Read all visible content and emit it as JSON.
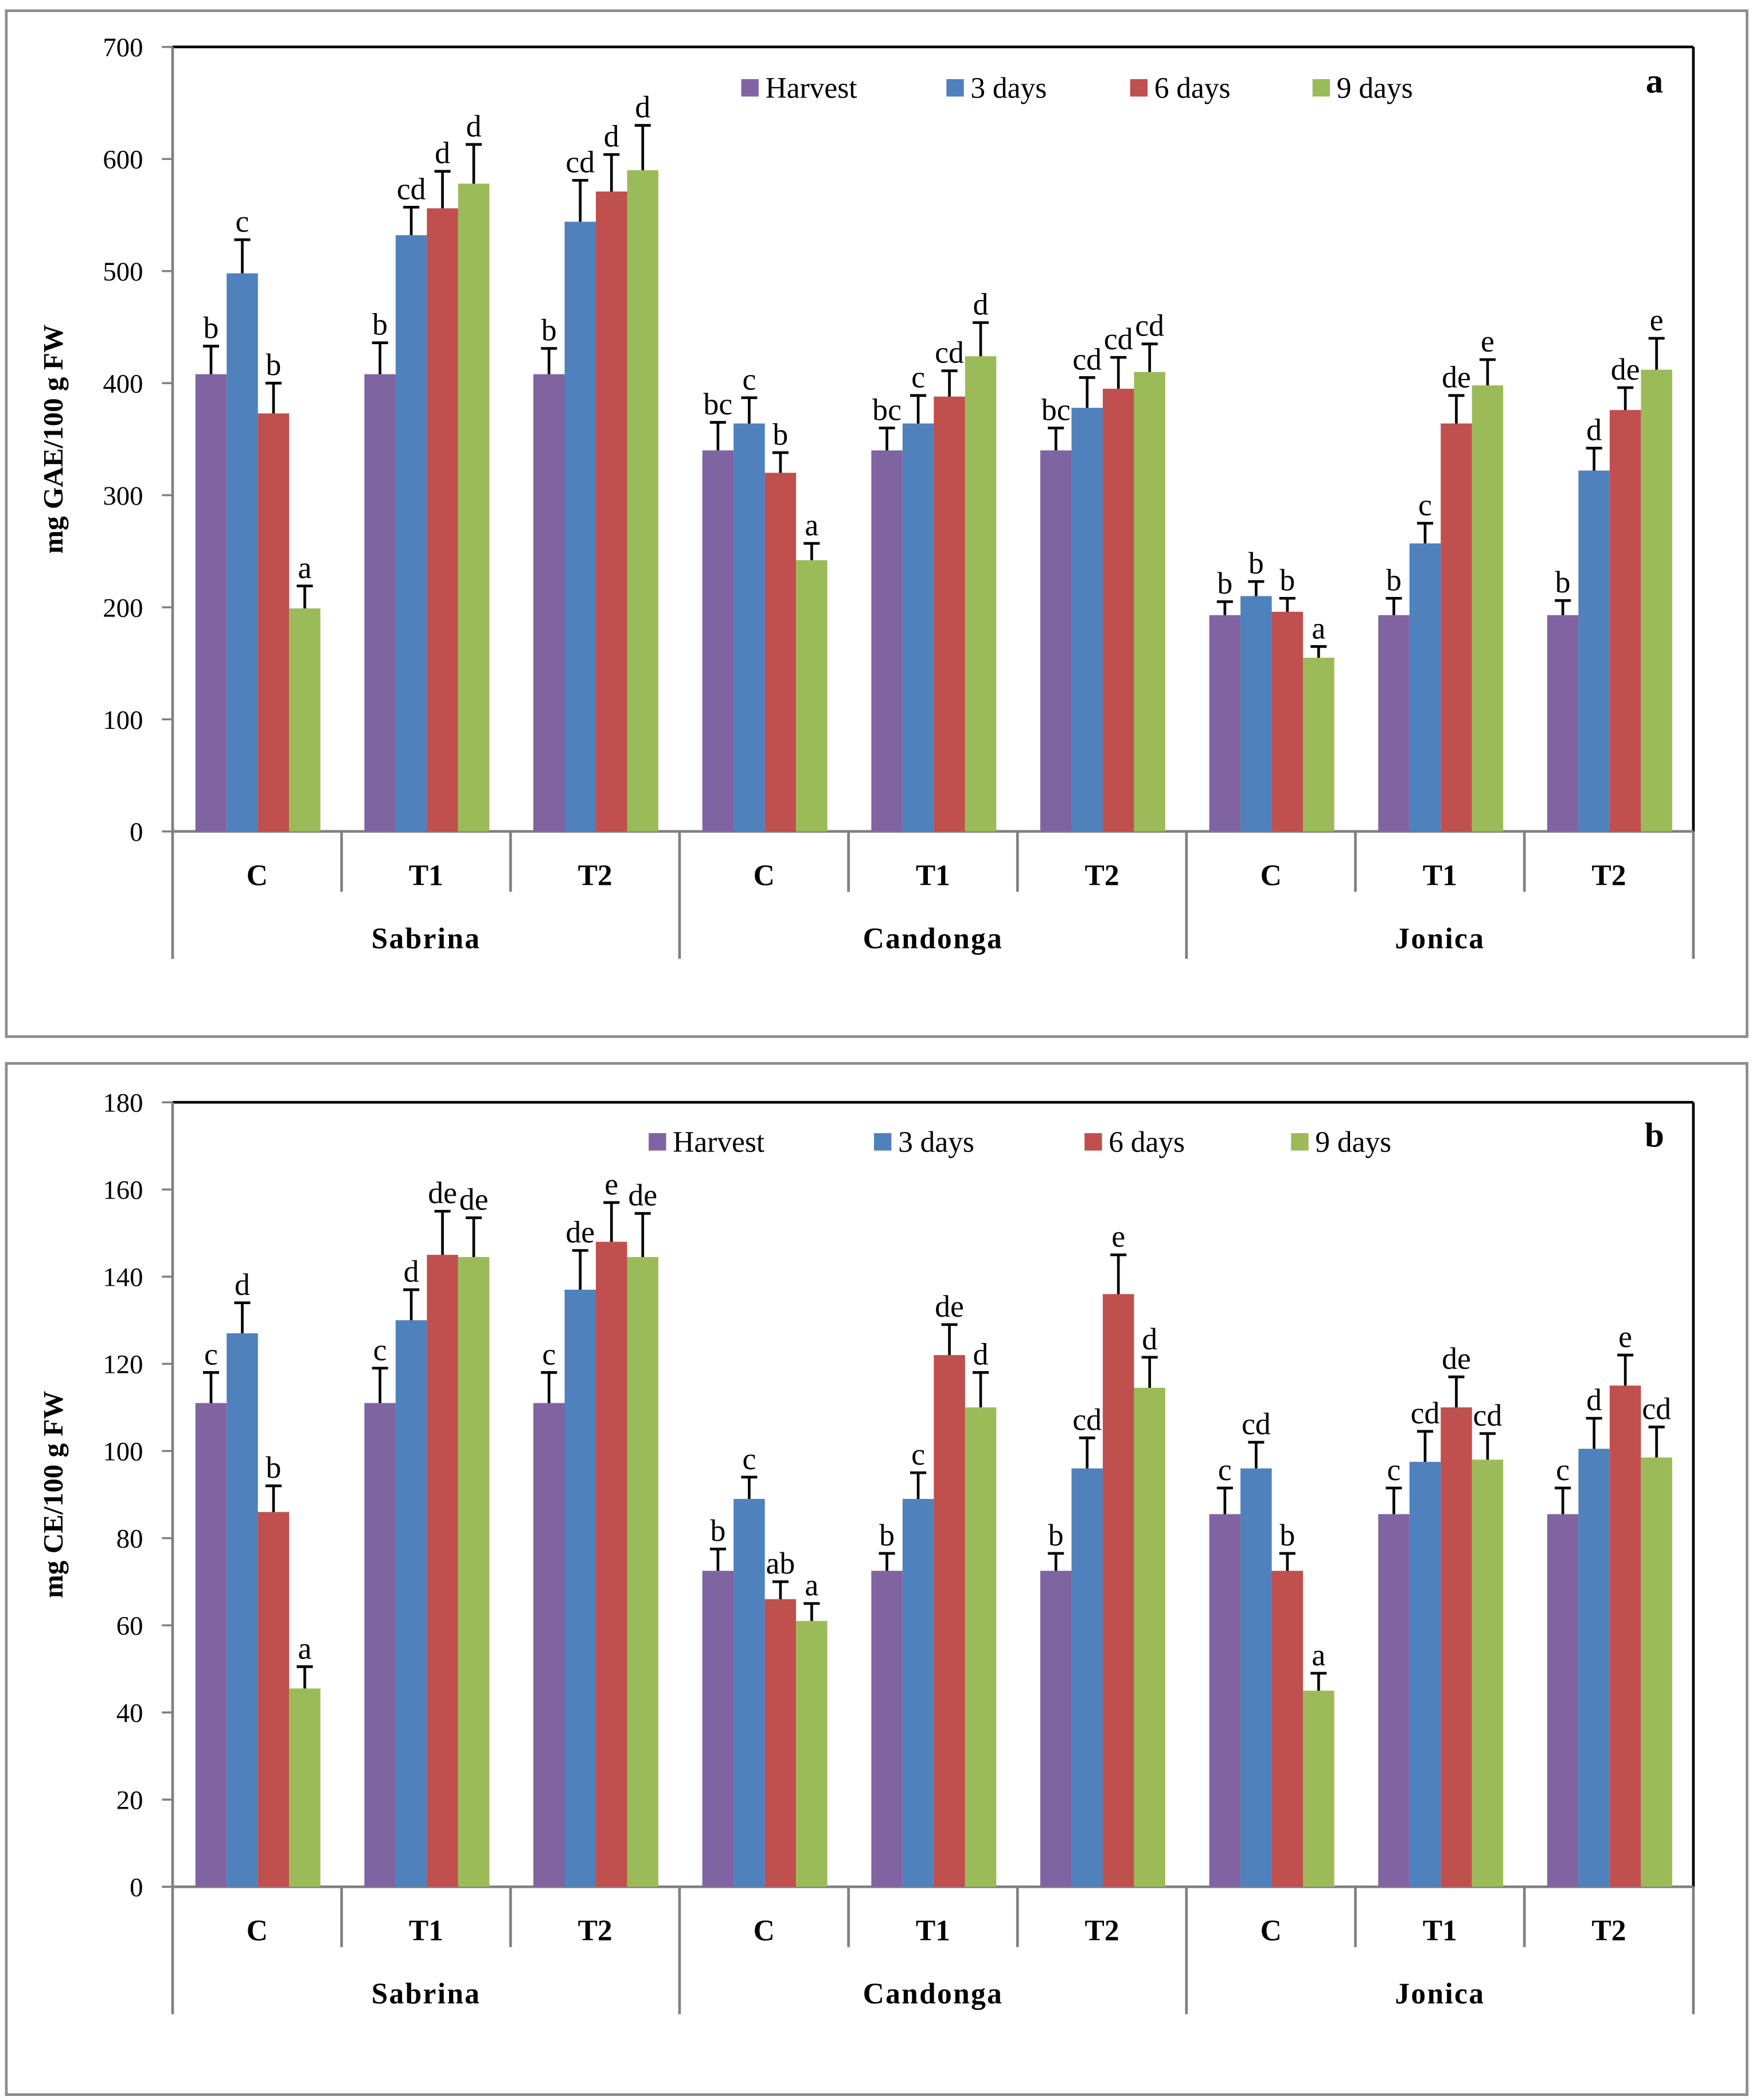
{
  "colors": {
    "Harvest": "#8064a2",
    "3 days": "#4f81bd",
    "6 days": "#c0504d",
    "9 days": "#9bbb59"
  },
  "chart_data": [
    {
      "type": "bar",
      "panel_label": "a",
      "title": "",
      "xlabel": "",
      "ylabel": "mg GAE/100 g FW",
      "ylim": [
        0,
        700
      ],
      "yticks": [
        "0",
        "100",
        "200",
        "300",
        "400",
        "500",
        "600",
        "700"
      ],
      "grid": false,
      "legend": {
        "placement": "top",
        "entries": [
          "Harvest",
          "3 days",
          "6 days",
          "9 days"
        ]
      },
      "groups": [
        "Sabrina",
        "Candonga",
        "Jonica"
      ],
      "categories": [
        "C",
        "T1",
        "T2",
        "C",
        "T1",
        "T2",
        "C",
        "T1",
        "T2"
      ],
      "series": [
        {
          "name": "Harvest",
          "values": [
            408,
            408,
            408,
            340,
            340,
            340,
            193,
            193,
            193
          ],
          "errors": [
            25,
            28,
            23,
            25,
            20,
            20,
            12,
            15,
            13
          ],
          "letters": [
            "b",
            "b",
            "b",
            "bc",
            "bc",
            "bc",
            "b",
            "b",
            "b"
          ]
        },
        {
          "name": "3 days",
          "values": [
            498,
            532,
            544,
            364,
            364,
            378,
            210,
            257,
            322
          ],
          "errors": [
            30,
            25,
            37,
            23,
            25,
            27,
            13,
            18,
            20
          ],
          "letters": [
            "c",
            "cd",
            "cd",
            "c",
            "c",
            "cd",
            "b",
            "c",
            "d"
          ]
        },
        {
          "name": "6 days",
          "values": [
            373,
            556,
            571,
            320,
            388,
            395,
            196,
            364,
            376
          ],
          "errors": [
            27,
            33,
            33,
            18,
            23,
            28,
            12,
            25,
            20
          ],
          "letters": [
            "b",
            "d",
            "d",
            "b",
            "cd",
            "cd",
            "b",
            "de",
            "de"
          ]
        },
        {
          "name": "9 days",
          "values": [
            199,
            578,
            590,
            242,
            424,
            410,
            155,
            398,
            412
          ],
          "errors": [
            20,
            35,
            40,
            15,
            30,
            25,
            10,
            23,
            28
          ],
          "letters": [
            "a",
            "d",
            "d",
            "a",
            "d",
            "cd",
            "a",
            "e",
            "e"
          ]
        }
      ]
    },
    {
      "type": "bar",
      "panel_label": "b",
      "title": "",
      "xlabel": "",
      "ylabel": "mg CE/100 g FW",
      "ylim": [
        0,
        180
      ],
      "yticks": [
        "0",
        "20",
        "40",
        "60",
        "80",
        "100",
        "120",
        "140",
        "160",
        "180"
      ],
      "grid": false,
      "legend": {
        "placement": "top",
        "entries": [
          "Harvest",
          "3 days",
          "6 days",
          "9 days"
        ]
      },
      "groups": [
        "Sabrina",
        "Candonga",
        "Jonica"
      ],
      "categories": [
        "C",
        "T1",
        "T2",
        "C",
        "T1",
        "T2",
        "C",
        "T1",
        "T2"
      ],
      "series": [
        {
          "name": "Harvest",
          "values": [
            111,
            111,
            111,
            72.5,
            72.5,
            72.5,
            85.5,
            85.5,
            85.5
          ],
          "errors": [
            7,
            8,
            7,
            5,
            4,
            4,
            6,
            6,
            6
          ],
          "letters": [
            "c",
            "c",
            "c",
            "b",
            "b",
            "b",
            "c",
            "c",
            "c"
          ]
        },
        {
          "name": "3 days",
          "values": [
            127,
            130,
            137,
            89,
            89,
            96,
            96,
            97.5,
            100.5
          ],
          "errors": [
            7,
            7,
            9,
            5,
            6,
            7,
            6,
            7,
            7
          ],
          "letters": [
            "d",
            "d",
            "de",
            "c",
            "c",
            "cd",
            "cd",
            "cd",
            "d"
          ]
        },
        {
          "name": "6 days",
          "values": [
            86,
            145,
            148,
            66,
            122,
            136,
            72.5,
            110,
            115
          ],
          "errors": [
            6,
            10,
            9,
            4,
            7,
            9,
            4,
            7,
            7
          ],
          "letters": [
            "b",
            "de",
            "e",
            "ab",
            "de",
            "e",
            "b",
            "de",
            "e"
          ]
        },
        {
          "name": "9 days",
          "values": [
            45.5,
            144.5,
            144.5,
            61,
            110,
            114.5,
            45,
            98,
            98.5
          ],
          "errors": [
            5,
            9,
            10,
            4,
            8,
            7,
            4,
            6,
            7
          ],
          "letters": [
            "a",
            "de",
            "de",
            "a",
            "d",
            "d",
            "a",
            "cd",
            "cd"
          ]
        }
      ]
    }
  ]
}
